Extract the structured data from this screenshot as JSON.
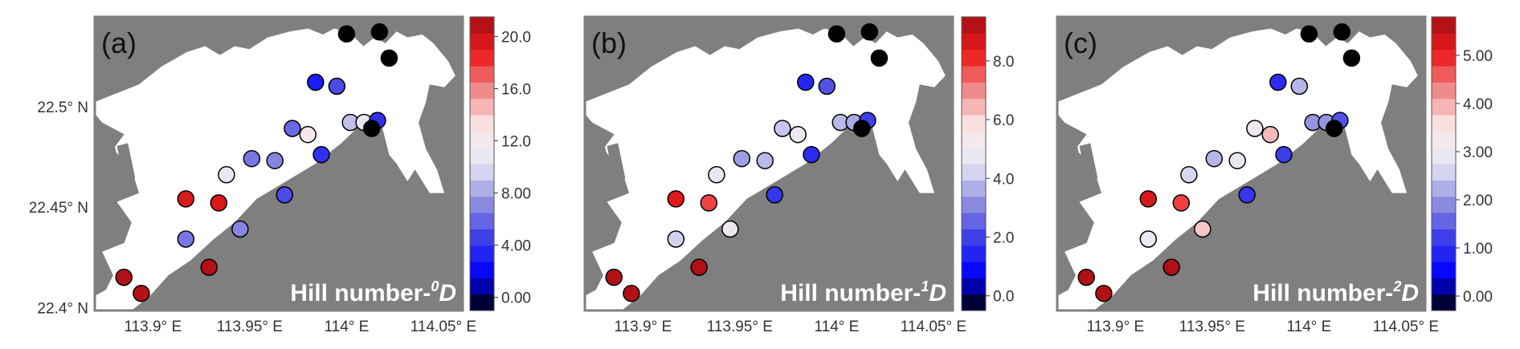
{
  "chart_data": [
    {
      "type": "scatter",
      "panel_label": "(a)",
      "title": "Hill number-",
      "title_sup": "0",
      "title_var": "D",
      "y_tick_labels": [
        "22.5° N",
        "22.45° N",
        "22.4° N"
      ],
      "x_tick_labels": [
        "113.9° E",
        "113.95° E",
        "114° E",
        "114.05° E"
      ],
      "colorbar": {
        "min": -1,
        "max": 21.5,
        "ticks": [
          "0.00",
          "4.00",
          "8.00",
          "12.0",
          "16.0",
          "20.0"
        ],
        "tick_values": [
          0,
          4,
          8,
          12,
          16,
          20
        ]
      },
      "points": [
        {
          "lon": 113.885,
          "lat": 22.4155,
          "value": 21
        },
        {
          "lon": 113.894,
          "lat": 22.4075,
          "value": 21
        },
        {
          "lon": 113.917,
          "lat": 22.4545,
          "value": 19.5
        },
        {
          "lon": 113.934,
          "lat": 22.4525,
          "value": 19.5
        },
        {
          "lon": 113.917,
          "lat": 22.4345,
          "value": 6.5
        },
        {
          "lon": 113.929,
          "lat": 22.4205,
          "value": 21
        },
        {
          "lon": 113.938,
          "lat": 22.4665,
          "value": 11
        },
        {
          "lon": 113.945,
          "lat": 22.4395,
          "value": 7
        },
        {
          "lon": 113.951,
          "lat": 22.4745,
          "value": 6.5
        },
        {
          "lon": 113.963,
          "lat": 22.4735,
          "value": 7
        },
        {
          "lon": 113.968,
          "lat": 22.4565,
          "value": 5
        },
        {
          "lon": 113.972,
          "lat": 22.4895,
          "value": 6
        },
        {
          "lon": 113.98,
          "lat": 22.4865,
          "value": 12.5
        },
        {
          "lon": 113.984,
          "lat": 22.5125,
          "value": 3
        },
        {
          "lon": 113.995,
          "lat": 22.5105,
          "value": 5
        },
        {
          "lon": 113.987,
          "lat": 22.4765,
          "value": 4
        },
        {
          "lon": 114.0,
          "lat": 22.5365,
          "value": -1
        },
        {
          "lon": 114.017,
          "lat": 22.5375,
          "value": -1
        },
        {
          "lon": 114.022,
          "lat": 22.5245,
          "value": -1
        },
        {
          "lon": 114.002,
          "lat": 22.4925,
          "value": 9
        },
        {
          "lon": 114.009,
          "lat": 22.4925,
          "value": 10.5
        },
        {
          "lon": 114.016,
          "lat": 22.4935,
          "value": 4
        },
        {
          "lon": 114.013,
          "lat": 22.4895,
          "value": -1
        }
      ]
    },
    {
      "type": "scatter",
      "panel_label": "(b)",
      "title": "Hill number-",
      "title_sup": "1",
      "title_var": "D",
      "y_tick_labels": [],
      "x_tick_labels": [
        "113.9° E",
        "113.95° E",
        "114° E",
        "114.05° E"
      ],
      "colorbar": {
        "min": -0.5,
        "max": 9.5,
        "ticks": [
          "0.0",
          "2.0",
          "4.0",
          "6.0",
          "8.0"
        ],
        "tick_values": [
          0,
          2,
          4,
          6,
          8
        ]
      },
      "points": [
        {
          "lon": 113.885,
          "lat": 22.4155,
          "value": 9.3
        },
        {
          "lon": 113.894,
          "lat": 22.4075,
          "value": 9.3
        },
        {
          "lon": 113.917,
          "lat": 22.4545,
          "value": 8.5
        },
        {
          "lon": 113.934,
          "lat": 22.4525,
          "value": 7.8
        },
        {
          "lon": 113.917,
          "lat": 22.4345,
          "value": 4.2
        },
        {
          "lon": 113.929,
          "lat": 22.4205,
          "value": 9.3
        },
        {
          "lon": 113.938,
          "lat": 22.4665,
          "value": 4.8
        },
        {
          "lon": 113.945,
          "lat": 22.4395,
          "value": 4.9
        },
        {
          "lon": 113.951,
          "lat": 22.4745,
          "value": 3.4
        },
        {
          "lon": 113.963,
          "lat": 22.4735,
          "value": 3.8
        },
        {
          "lon": 113.968,
          "lat": 22.4565,
          "value": 1.8
        },
        {
          "lon": 113.972,
          "lat": 22.4895,
          "value": 4.0
        },
        {
          "lon": 113.98,
          "lat": 22.4865,
          "value": 5.0
        },
        {
          "lon": 113.984,
          "lat": 22.5125,
          "value": 1.5
        },
        {
          "lon": 113.995,
          "lat": 22.5105,
          "value": 2.3
        },
        {
          "lon": 113.987,
          "lat": 22.4765,
          "value": 1.6
        },
        {
          "lon": 114.0,
          "lat": 22.5365,
          "value": -0.5
        },
        {
          "lon": 114.017,
          "lat": 22.5375,
          "value": -0.5
        },
        {
          "lon": 114.022,
          "lat": 22.5245,
          "value": -0.5
        },
        {
          "lon": 114.002,
          "lat": 22.4925,
          "value": 3.8
        },
        {
          "lon": 114.009,
          "lat": 22.4925,
          "value": 3.6
        },
        {
          "lon": 114.016,
          "lat": 22.4935,
          "value": 2.0
        },
        {
          "lon": 114.013,
          "lat": 22.4895,
          "value": -0.5
        }
      ]
    },
    {
      "type": "scatter",
      "panel_label": "(c)",
      "title": "Hill number-",
      "title_sup": "2",
      "title_var": "D",
      "y_tick_labels": [],
      "x_tick_labels": [
        "113.9° E",
        "113.95° E",
        "114° E",
        "114.05° E"
      ],
      "colorbar": {
        "min": -0.3,
        "max": 5.8,
        "ticks": [
          "0.00",
          "1.00",
          "2.00",
          "3.00",
          "4.00",
          "5.00"
        ],
        "tick_values": [
          0,
          1,
          2,
          3,
          4,
          5
        ]
      },
      "points": [
        {
          "lon": 113.885,
          "lat": 22.4155,
          "value": 5.7
        },
        {
          "lon": 113.894,
          "lat": 22.4075,
          "value": 5.7
        },
        {
          "lon": 113.917,
          "lat": 22.4545,
          "value": 5.3
        },
        {
          "lon": 113.934,
          "lat": 22.4525,
          "value": 4.8
        },
        {
          "lon": 113.917,
          "lat": 22.4345,
          "value": 3.0
        },
        {
          "lon": 113.929,
          "lat": 22.4205,
          "value": 5.7
        },
        {
          "lon": 113.938,
          "lat": 22.4665,
          "value": 2.6
        },
        {
          "lon": 113.945,
          "lat": 22.4395,
          "value": 3.8
        },
        {
          "lon": 113.951,
          "lat": 22.4745,
          "value": 2.3
        },
        {
          "lon": 113.963,
          "lat": 22.4735,
          "value": 2.9
        },
        {
          "lon": 113.968,
          "lat": 22.4565,
          "value": 1.1
        },
        {
          "lon": 113.972,
          "lat": 22.4895,
          "value": 3.1
        },
        {
          "lon": 113.98,
          "lat": 22.4865,
          "value": 3.9
        },
        {
          "lon": 113.984,
          "lat": 22.5125,
          "value": 1.0
        },
        {
          "lon": 113.995,
          "lat": 22.5105,
          "value": 2.3
        },
        {
          "lon": 113.987,
          "lat": 22.4765,
          "value": 1.2
        },
        {
          "lon": 114.0,
          "lat": 22.5365,
          "value": -0.3
        },
        {
          "lon": 114.017,
          "lat": 22.5375,
          "value": -0.3
        },
        {
          "lon": 114.022,
          "lat": 22.5245,
          "value": -0.3
        },
        {
          "lon": 114.002,
          "lat": 22.4925,
          "value": 2.0
        },
        {
          "lon": 114.009,
          "lat": 22.4925,
          "value": 2.0
        },
        {
          "lon": 114.016,
          "lat": 22.4935,
          "value": 1.4
        },
        {
          "lon": 114.013,
          "lat": 22.4895,
          "value": -0.3
        }
      ]
    }
  ],
  "colors": {
    "land": "#7f7f7f",
    "water": "#ffffff",
    "frame": "#7f7f7f",
    "colormap": [
      "#000000",
      "#0000ff",
      "#3f3fe8",
      "#9393e0",
      "#e6e6f5",
      "#fbe9e9",
      "#f08b8b",
      "#ee1c1c",
      "#a50f15"
    ]
  }
}
